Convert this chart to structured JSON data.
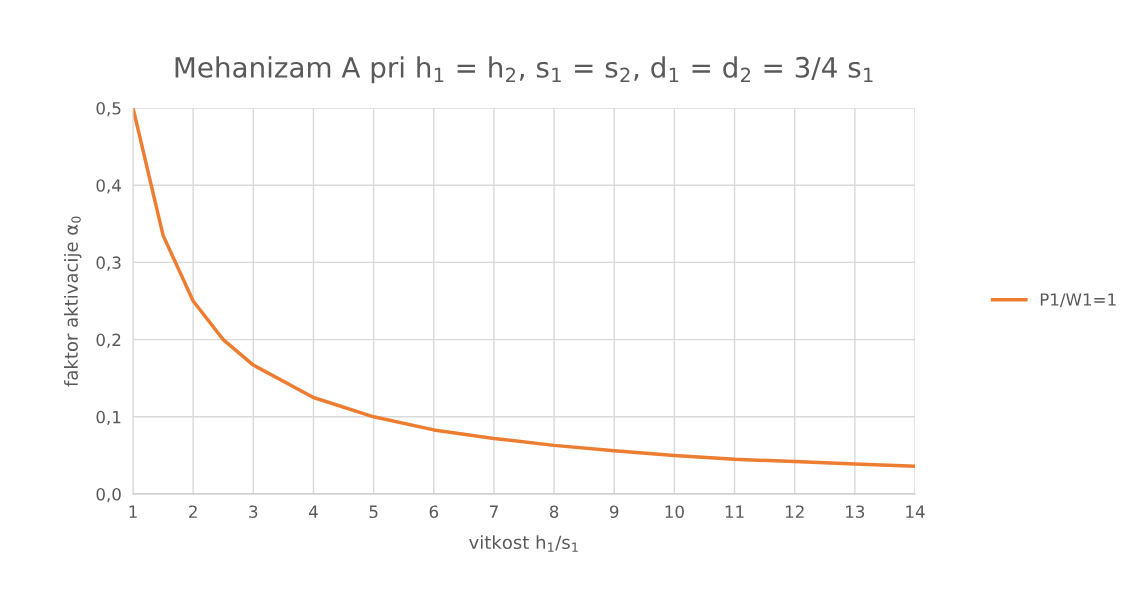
{
  "chart_data": {
    "type": "line",
    "title": "Mehanizam A pri h$_{1}$ = h$_{2}$, s$_{1}$ = s$_{2}$, d$_{1}$ = d$_{2}$ = 3/4 s$_{1}$",
    "xlabel": "vitkost h$_{1}$/s$_{1}$",
    "ylabel": "faktor aktivacije α$_{0}$",
    "x": [
      1,
      1.5,
      2,
      2.5,
      3,
      4,
      5,
      6,
      7,
      8,
      9,
      10,
      11,
      12,
      13,
      14
    ],
    "series": [
      {
        "name": "P1/W1=1",
        "color": "#ed7d31",
        "values": [
          0.5,
          0.335,
          0.25,
          0.2,
          0.167,
          0.125,
          0.1,
          0.083,
          0.072,
          0.063,
          0.056,
          0.05,
          0.045,
          0.042,
          0.039,
          0.036
        ]
      }
    ],
    "xlim": [
      1,
      14
    ],
    "xticks": [
      1,
      2,
      3,
      4,
      5,
      6,
      7,
      8,
      9,
      10,
      11,
      12,
      13,
      14
    ],
    "ylim": [
      0,
      0.5
    ],
    "yticks": [
      {
        "value": 0,
        "label": "0,0"
      },
      {
        "value": 0.1,
        "label": "0,1"
      },
      {
        "value": 0.2,
        "label": "0,2"
      },
      {
        "value": 0.3,
        "label": "0,3"
      },
      {
        "value": 0.4,
        "label": "0,4"
      },
      {
        "value": 0.5,
        "label": "0,5"
      }
    ],
    "grid": true,
    "legend": "right",
    "marker": "none",
    "line_style": "solid"
  }
}
